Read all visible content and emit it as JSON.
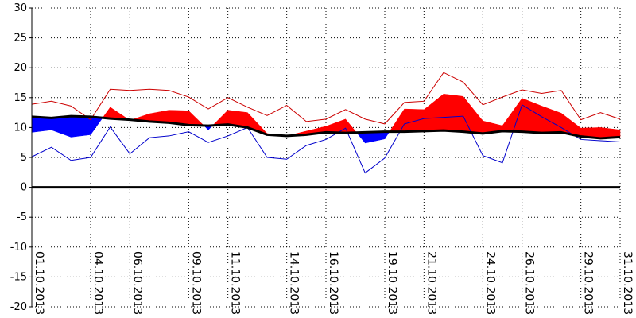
{
  "chart_data": {
    "type": "area",
    "title": "",
    "xlabel": "",
    "ylabel": "",
    "ylim": [
      -20,
      30
    ],
    "yticks": [
      30,
      25,
      20,
      15,
      10,
      5,
      0,
      -5,
      -10,
      -15,
      -20
    ],
    "grid": true,
    "x": [
      "01.10.2013",
      "02.10.2013",
      "03.10.2013",
      "04.10.2013",
      "05.10.2013",
      "06.10.2013",
      "07.10.2013",
      "08.10.2013",
      "09.10.2013",
      "10.10.2013",
      "11.10.2013",
      "12.10.2013",
      "13.10.2013",
      "14.10.2013",
      "15.10.2013",
      "16.10.2013",
      "17.10.2013",
      "18.10.2013",
      "19.10.2013",
      "20.10.2013",
      "21.10.2013",
      "22.10.2013",
      "23.10.2013",
      "24.10.2013",
      "25.10.2013",
      "26.10.2013",
      "27.10.2013",
      "28.10.2013",
      "29.10.2013",
      "30.10.2013",
      "31.10.2013"
    ],
    "xtick_labels": [
      "01.10.2013",
      "04.10.2013",
      "06.10.2013",
      "09.10.2013",
      "11.10.2013",
      "14.10.2013",
      "16.10.2013",
      "19.10.2013",
      "21.10.2013",
      "24.10.2013",
      "26.10.2013",
      "29.10.2013",
      "31.10.2013"
    ],
    "zero_line": 0,
    "series": [
      {
        "key": "norm",
        "color": "#000000",
        "values": [
          11.8,
          11.6,
          11.9,
          11.8,
          11.5,
          11.3,
          11.0,
          10.8,
          10.4,
          10.3,
          10.5,
          10.0,
          8.8,
          8.6,
          8.8,
          9.2,
          9.1,
          9.2,
          9.3,
          9.3,
          9.4,
          9.5,
          9.3,
          9.0,
          9.4,
          9.3,
          9.1,
          9.2,
          8.5,
          8.2,
          8.4
        ]
      },
      {
        "key": "mean",
        "color": "#ff0000",
        "values": [
          9.2,
          9.6,
          8.4,
          8.8,
          13.4,
          11.2,
          12.3,
          12.9,
          12.8,
          9.6,
          12.9,
          12.5,
          9.0,
          8.6,
          9.4,
          10.2,
          11.4,
          7.4,
          8.1,
          13.1,
          13.0,
          15.6,
          15.2,
          11.1,
          10.3,
          14.9,
          13.6,
          12.4,
          9.9,
          10.0,
          9.6
        ]
      },
      {
        "key": "max",
        "color": "#cc0000",
        "values": [
          13.9,
          14.4,
          13.6,
          11.3,
          16.4,
          16.2,
          16.4,
          16.2,
          15.1,
          13.1,
          15.0,
          13.4,
          12.0,
          13.7,
          11.0,
          11.4,
          13.0,
          11.4,
          10.6,
          14.2,
          14.4,
          19.2,
          17.6,
          13.8,
          15.1,
          16.3,
          15.7,
          16.2,
          11.3,
          12.5,
          11.4
        ]
      },
      {
        "key": "min",
        "color": "#0000cc",
        "values": [
          5.1,
          6.7,
          4.5,
          5.0,
          10.1,
          5.6,
          8.3,
          8.6,
          9.3,
          7.5,
          8.6,
          10.0,
          5.0,
          4.7,
          7.0,
          8.0,
          9.9,
          2.4,
          4.9,
          10.6,
          11.5,
          11.7,
          11.9,
          5.3,
          4.1,
          13.8,
          11.8,
          10.0,
          8.0,
          7.8,
          7.6
        ]
      }
    ],
    "fill_above_color": "#ff0000",
    "fill_below_color": "#0000ff"
  }
}
